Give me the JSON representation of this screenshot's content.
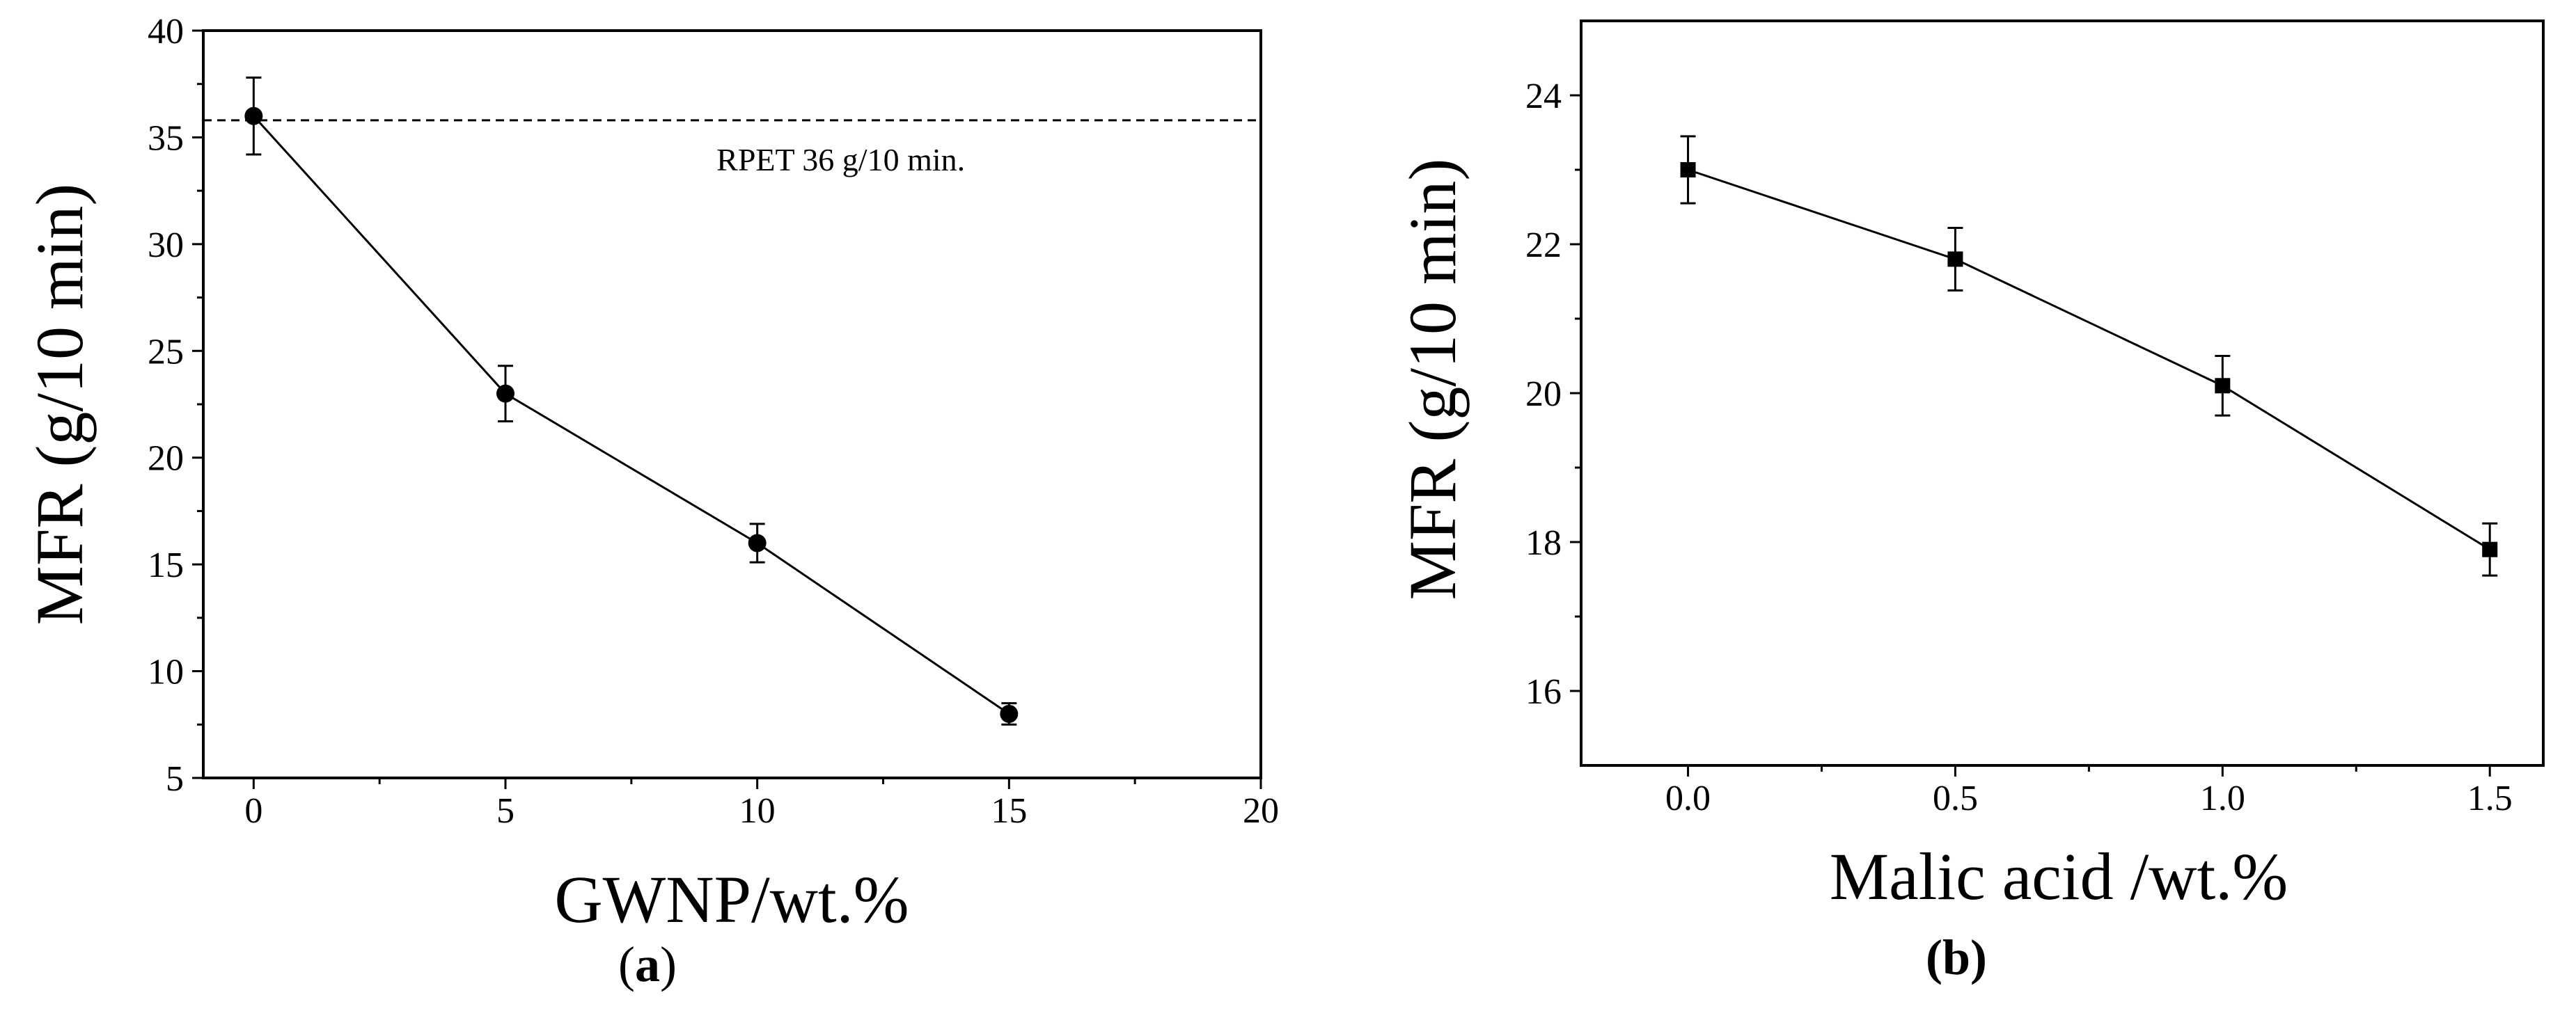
{
  "chart_data": [
    {
      "panel": "a",
      "type": "line",
      "marker": "circle",
      "x": [
        0,
        5,
        10,
        15
      ],
      "series": [
        {
          "name": "MFR",
          "values": [
            36,
            23,
            16,
            8
          ],
          "errors": [
            1.8,
            1.3,
            0.9,
            0.5
          ]
        }
      ],
      "xlim": [
        -1,
        20
      ],
      "ylim": [
        5,
        40
      ],
      "xticks": [
        0,
        5,
        10,
        15,
        20
      ],
      "yticks": [
        5,
        10,
        15,
        20,
        25,
        30,
        35,
        40
      ],
      "xtick_labels": [
        "0",
        "5",
        "10",
        "15",
        "20"
      ],
      "ytick_labels": [
        "5",
        "10",
        "15",
        "20",
        "25",
        "30",
        "35",
        "40"
      ],
      "xlabel": "GWNP/wt.%",
      "ylabel": "MFR (g/10 min)",
      "reference_line": {
        "y": 35.8,
        "label": "RPET 36 g/10 min.",
        "label_x": 10
      },
      "caption": {
        "open": "(",
        "letter": "a",
        "close": ")"
      }
    },
    {
      "panel": "b",
      "type": "line",
      "marker": "square",
      "x": [
        0.0,
        0.5,
        1.0,
        1.5
      ],
      "series": [
        {
          "name": "MFR",
          "values": [
            23.0,
            21.8,
            20.1,
            17.9
          ],
          "errors": [
            0.45,
            0.42,
            0.4,
            0.35
          ]
        }
      ],
      "xlim": [
        -0.2,
        1.6
      ],
      "ylim": [
        15,
        25
      ],
      "xticks": [
        0.0,
        0.5,
        1.0,
        1.5
      ],
      "yticks": [
        16,
        18,
        20,
        22,
        24
      ],
      "xtick_labels": [
        "0.0",
        "0.5",
        "1.0",
        "1.5"
      ],
      "ytick_labels": [
        "16",
        "18",
        "20",
        "22",
        "24"
      ],
      "xlabel": "Malic acid /wt.%",
      "ylabel": "MFR (g/10 min)",
      "caption": {
        "open": "(",
        "letter": "b",
        "close": ")"
      }
    }
  ]
}
